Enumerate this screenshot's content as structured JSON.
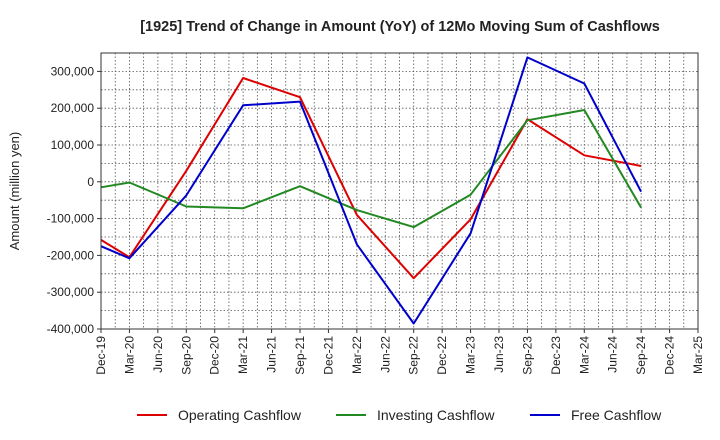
{
  "chart_data": {
    "type": "line",
    "title": "[1925]  Trend of Change in Amount (YoY) of 12Mo Moving Sum of Cashflows",
    "xlabel": "",
    "ylabel": "Amount (million yen)",
    "ylim": [
      -400000,
      350000
    ],
    "yticks": [
      300000,
      200000,
      100000,
      0,
      -100000,
      -200000,
      -300000,
      -400000
    ],
    "ytick_labels": [
      "300,000",
      "200,000",
      "100,000",
      "0",
      "-100,000",
      "-200,000",
      "-300,000",
      "-400,000"
    ],
    "categories": [
      "Dec-19",
      "Mar-20",
      "Jun-20",
      "Sep-20",
      "Dec-20",
      "Mar-21",
      "Jun-21",
      "Sep-21",
      "Dec-21",
      "Mar-22",
      "Jun-22",
      "Sep-22",
      "Dec-22",
      "Mar-23",
      "Jun-23",
      "Sep-23",
      "Dec-23",
      "Mar-24",
      "Jun-24",
      "Sep-24",
      "Dec-24",
      "Mar-25"
    ],
    "grid": true,
    "legend_position": "bottom",
    "series": [
      {
        "name": "Operating Cashflow",
        "color": "#dd0000",
        "values": [
          -158000,
          -205000,
          null,
          30000,
          null,
          282000,
          null,
          230000,
          null,
          -90000,
          null,
          -262000,
          null,
          -102000,
          null,
          170000,
          null,
          72000,
          null,
          43000,
          null,
          null
        ]
      },
      {
        "name": "Investing Cashflow",
        "color": "#228822",
        "values": [
          -15000,
          -2000,
          null,
          -67000,
          null,
          -72000,
          null,
          -12000,
          null,
          -77000,
          null,
          -123000,
          null,
          -35000,
          null,
          167000,
          null,
          195000,
          null,
          -70000,
          null,
          null
        ]
      },
      {
        "name": "Free Cashflow",
        "color": "#0000cc",
        "values": [
          -175000,
          -208000,
          null,
          -37000,
          null,
          208000,
          null,
          218000,
          null,
          -170000,
          null,
          -385000,
          null,
          -140000,
          null,
          338000,
          null,
          267000,
          null,
          -27000,
          null,
          null
        ]
      }
    ]
  }
}
